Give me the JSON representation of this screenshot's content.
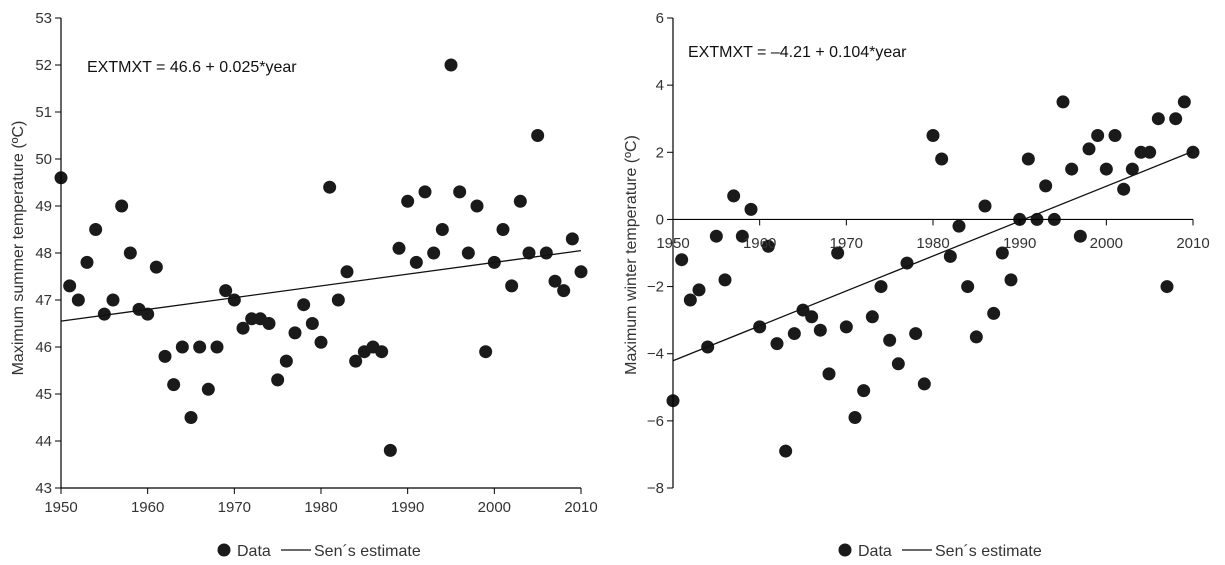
{
  "chart_data": [
    {
      "type": "scatter",
      "ylabel": "Maximum summer temperature (ºC)",
      "xlabel": "",
      "xlim": [
        1950,
        2010
      ],
      "ylim": [
        43,
        53
      ],
      "xticks": [
        "1950",
        "1960",
        "1970",
        "1980",
        "1990",
        "2000",
        "2010"
      ],
      "yticks": [
        "43",
        "44",
        "45",
        "46",
        "47",
        "48",
        "49",
        "50",
        "51",
        "52",
        "53"
      ],
      "equation": "EXTMXT = 46.6 + 0.025*year",
      "legend": {
        "data": "Data",
        "fit": "Sen´s estimate",
        "placement": "bottom"
      },
      "trend": {
        "x": [
          1950,
          2010
        ],
        "y": [
          46.55,
          48.05
        ]
      },
      "series": [
        {
          "x": [
            1950,
            1951,
            1952,
            1953,
            1954,
            1955,
            1956,
            1957,
            1958,
            1959,
            1960,
            1961,
            1962,
            1963,
            1964,
            1965,
            1966,
            1967,
            1968,
            1969,
            1970,
            1971,
            1972,
            1973,
            1974,
            1975,
            1976,
            1977,
            1978,
            1979,
            1980,
            1981,
            1982,
            1983,
            1984,
            1985,
            1986,
            1987,
            1988,
            1989,
            1990,
            1991,
            1992,
            1993,
            1994,
            1995,
            1996,
            1997,
            1998,
            1999,
            2000,
            2001,
            2002,
            2003,
            2004,
            2005,
            2006,
            2007,
            2008,
            2009,
            2010
          ],
          "y": [
            49.6,
            47.3,
            47.0,
            47.8,
            48.5,
            46.7,
            47.0,
            49.0,
            48.0,
            46.8,
            46.7,
            47.7,
            45.8,
            45.2,
            46.0,
            44.5,
            46.0,
            45.1,
            46.0,
            47.2,
            47.0,
            46.4,
            46.6,
            46.6,
            46.5,
            45.3,
            45.7,
            46.3,
            46.9,
            46.5,
            46.1,
            49.4,
            47.0,
            47.6,
            45.7,
            45.9,
            46.0,
            45.9,
            43.8,
            48.1,
            49.1,
            47.8,
            49.3,
            48.0,
            48.5,
            52.0,
            49.3,
            48.0,
            49.0,
            45.9,
            47.8,
            48.5,
            47.3,
            49.1,
            48.0,
            50.5,
            48.0,
            47.4,
            47.2,
            48.3,
            47.6
          ]
        }
      ]
    },
    {
      "type": "scatter",
      "ylabel": "Maximum winter temperature (ºC)",
      "xlabel": "",
      "xlim": [
        1950,
        2010
      ],
      "ylim": [
        -8,
        6
      ],
      "xticks": [
        "1950",
        "1960",
        "1970",
        "1980",
        "1990",
        "2000",
        "2010"
      ],
      "yticks": [
        "−8",
        "−6",
        "−4",
        "−2",
        "0",
        "2",
        "4",
        "6"
      ],
      "equation": "EXTMXT = –4.21 + 0.104*year",
      "legend": {
        "data": "Data",
        "fit": "Sen´s estimate",
        "placement": "bottom"
      },
      "trend": {
        "x": [
          1950,
          2010
        ],
        "y": [
          -4.21,
          2.03
        ]
      },
      "series": [
        {
          "x": [
            1950,
            1951,
            1952,
            1953,
            1954,
            1955,
            1956,
            1957,
            1958,
            1959,
            1960,
            1961,
            1962,
            1963,
            1964,
            1965,
            1966,
            1967,
            1968,
            1969,
            1970,
            1971,
            1972,
            1973,
            1974,
            1975,
            1976,
            1977,
            1978,
            1979,
            1980,
            1981,
            1982,
            1983,
            1984,
            1985,
            1986,
            1987,
            1988,
            1989,
            1990,
            1991,
            1992,
            1993,
            1994,
            1995,
            1996,
            1997,
            1998,
            1999,
            2000,
            2001,
            2002,
            2003,
            2004,
            2005,
            2006,
            2007,
            2008,
            2009,
            2010
          ],
          "y": [
            -5.4,
            -1.2,
            -2.4,
            -2.1,
            -3.8,
            -0.5,
            -1.8,
            0.7,
            -0.5,
            0.3,
            -3.2,
            -0.8,
            -3.7,
            -6.9,
            -3.4,
            -2.7,
            -2.9,
            -3.3,
            -4.6,
            -1.0,
            -3.2,
            -5.9,
            -5.1,
            -2.9,
            -2.0,
            -3.6,
            -4.3,
            -1.3,
            -3.4,
            -4.9,
            2.5,
            1.8,
            -1.1,
            -0.2,
            -2.0,
            -3.5,
            0.4,
            -2.8,
            -1.0,
            -1.8,
            0.0,
            1.8,
            0.0,
            1.0,
            0.0,
            3.5,
            1.5,
            -0.5,
            2.1,
            2.5,
            1.5,
            2.5,
            0.9,
            1.5,
            2.0,
            2.0,
            3.0,
            -2.0,
            3.0,
            3.5,
            2.0
          ]
        }
      ]
    }
  ]
}
